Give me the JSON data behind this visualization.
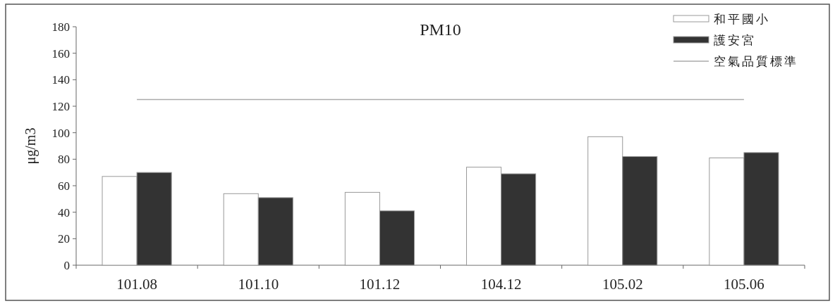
{
  "chart_data": {
    "type": "bar",
    "title": "PM10",
    "ylabel": "μg/m3",
    "categories": [
      "101.08",
      "101.10",
      "101.12",
      "104.12",
      "105.02",
      "105.06"
    ],
    "series": [
      {
        "name": "和平國小",
        "color": "#ffffff",
        "values": [
          67,
          54,
          55,
          74,
          97,
          81
        ]
      },
      {
        "name": "護安宮",
        "color": "#333333",
        "values": [
          70,
          51,
          41,
          69,
          82,
          85
        ]
      },
      {
        "name": "空氣品質標準",
        "type": "line",
        "color": "#aaaaaa",
        "values": [
          125,
          125,
          125,
          125,
          125,
          125
        ]
      }
    ],
    "ylim": [
      0,
      180
    ],
    "yticks": [
      0,
      20,
      40,
      60,
      80,
      100,
      120,
      140,
      160,
      180
    ],
    "legend": "top right"
  }
}
